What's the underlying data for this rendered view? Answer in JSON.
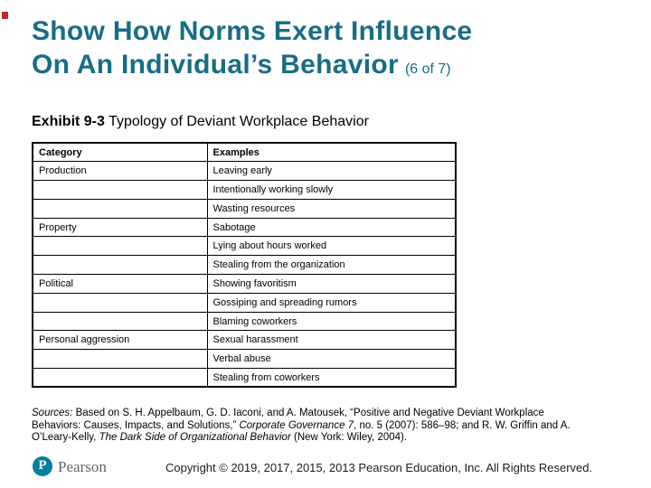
{
  "title": {
    "line1": "Show How Norms Exert Influence",
    "line2": "On An Individual’s Behavior",
    "page_indicator": "(6 of 7)"
  },
  "exhibit_heading": {
    "label": "Exhibit 9-3",
    "text": " Typology of Deviant Workplace Behavior"
  },
  "table": {
    "headers": [
      "Category",
      "Examples"
    ],
    "rows": [
      [
        "Production",
        "Leaving early"
      ],
      [
        "",
        "Intentionally working slowly"
      ],
      [
        "",
        "Wasting resources"
      ],
      [
        "Property",
        "Sabotage"
      ],
      [
        "",
        "Lying about hours worked"
      ],
      [
        "",
        "Stealing from the organization"
      ],
      [
        "Political",
        "Showing favoritism"
      ],
      [
        "",
        "Gossiping and spreading rumors"
      ],
      [
        "",
        "Blaming coworkers"
      ],
      [
        "Personal aggression",
        "Sexual harassment"
      ],
      [
        "",
        "Verbal abuse"
      ],
      [
        "",
        "Stealing from coworkers"
      ]
    ]
  },
  "sources": {
    "line1_italic": "Sources:",
    "line1_rest": " Based on S. H. Appelbaum, G. D. Iaconi, and A. Matousek, “Positive and Negative Deviant Workplace",
    "line2_pre": "Behaviors: Causes, Impacts, and Solutions,” ",
    "line2_italic": "Corporate Governance 7",
    "line2_rest": ", no. 5 (2007): 586–98; and R. W. Griffin and A.",
    "line3_pre": "O’Leary-Kelly, ",
    "line3_italic": "The Dark Side of Organizational Behavior",
    "line3_rest": " (New York: Wiley, 2004)."
  },
  "footer": {
    "logo_letter": "P",
    "brand": "Pearson",
    "copyright": "Copyright © 2019, 2017, 2015, 2013 Pearson Education, Inc. All Rights Reserved."
  },
  "colors": {
    "title_teal": "#176d85",
    "accent_red": "#c9252d",
    "pearson_blue": "#007fa3",
    "wordmark_gray": "#636466",
    "table_border": "#000000"
  }
}
